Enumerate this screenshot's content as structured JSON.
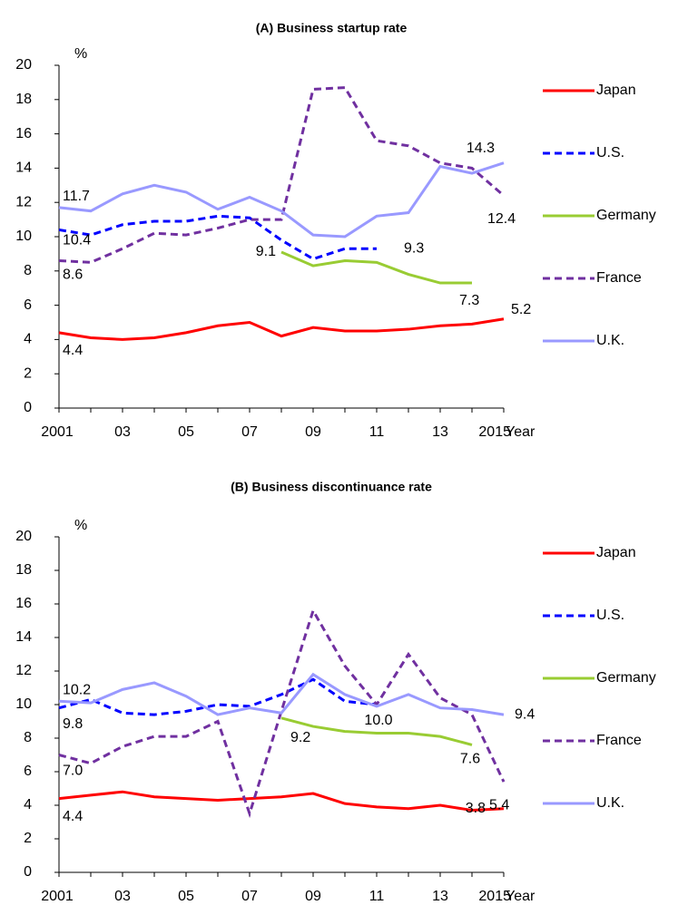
{
  "chart_data": [
    {
      "type": "line",
      "title": "(A) Business startup rate",
      "y_label": "%",
      "x_label": "Year",
      "categories": [
        "2001",
        null,
        "03",
        null,
        "05",
        null,
        "07",
        null,
        "09",
        null,
        "11",
        null,
        "13",
        null,
        "2015"
      ],
      "ylim": [
        0,
        20
      ],
      "yticks": [
        0,
        2,
        4,
        6,
        8,
        10,
        12,
        14,
        16,
        18,
        20
      ],
      "grid": false,
      "legend": "right",
      "series": [
        {
          "name": "Japan",
          "color": "#ff0000",
          "line_style": "solid",
          "values": [
            4.4,
            4.1,
            4.0,
            4.1,
            4.4,
            4.8,
            5.0,
            4.2,
            4.7,
            4.5,
            4.5,
            4.6,
            4.8,
            4.9,
            5.2
          ],
          "value_labels": [
            "4.4",
            null,
            null,
            null,
            null,
            null,
            null,
            null,
            null,
            null,
            null,
            null,
            null,
            null,
            "5.2"
          ]
        },
        {
          "name": "U.S.",
          "color": "#0000ff",
          "line_style": "dashed",
          "values": [
            10.4,
            10.1,
            10.7,
            10.9,
            10.9,
            11.2,
            11.1,
            9.8,
            8.7,
            9.3,
            9.3,
            null,
            null,
            null,
            null
          ],
          "value_labels": [
            "10.4",
            null,
            null,
            null,
            null,
            null,
            null,
            null,
            null,
            null,
            "9.3",
            null,
            null,
            null,
            null
          ]
        },
        {
          "name": "Germany",
          "color": "#99cc33",
          "line_style": "solid",
          "values": [
            null,
            null,
            null,
            null,
            null,
            null,
            null,
            9.1,
            8.3,
            8.6,
            8.5,
            7.8,
            7.3,
            7.3,
            null
          ],
          "value_labels": [
            null,
            null,
            null,
            null,
            null,
            null,
            null,
            "9.1",
            null,
            null,
            null,
            null,
            null,
            "7.3",
            null
          ]
        },
        {
          "name": "France",
          "color": "#7030a0",
          "line_style": "dashed",
          "values": [
            8.6,
            8.5,
            9.3,
            10.2,
            10.1,
            10.5,
            11.0,
            11.0,
            18.6,
            18.7,
            15.6,
            15.3,
            14.3,
            14.0,
            12.4
          ],
          "value_labels": [
            "8.6",
            null,
            null,
            null,
            null,
            null,
            null,
            null,
            null,
            null,
            null,
            null,
            null,
            null,
            "12.4"
          ]
        },
        {
          "name": "U.K.",
          "color": "#9999ff",
          "line_style": "solid",
          "values": [
            11.7,
            11.5,
            12.5,
            13.0,
            12.6,
            11.6,
            12.3,
            11.5,
            10.1,
            10.0,
            11.2,
            11.4,
            14.1,
            13.7,
            14.3
          ],
          "value_labels": [
            "11.7",
            null,
            null,
            null,
            null,
            null,
            null,
            null,
            null,
            null,
            null,
            null,
            null,
            null,
            "14.3"
          ]
        }
      ]
    },
    {
      "type": "line",
      "title": "(B) Business discontinuance rate",
      "y_label": "%",
      "x_label": "Year",
      "categories": [
        "2001",
        null,
        "03",
        null,
        "05",
        null,
        "07",
        null,
        "09",
        null,
        "11",
        null,
        "13",
        null,
        "2015"
      ],
      "ylim": [
        0,
        20
      ],
      "yticks": [
        0,
        2,
        4,
        6,
        8,
        10,
        12,
        14,
        16,
        18,
        20
      ],
      "grid": false,
      "legend": "right",
      "series": [
        {
          "name": "Japan",
          "color": "#ff0000",
          "line_style": "solid",
          "values": [
            4.4,
            4.6,
            4.8,
            4.5,
            4.4,
            4.3,
            4.4,
            4.5,
            4.7,
            4.1,
            3.9,
            3.8,
            4.0,
            3.7,
            3.8
          ],
          "value_labels": [
            "4.4",
            null,
            null,
            null,
            null,
            null,
            null,
            null,
            null,
            null,
            null,
            null,
            null,
            null,
            "3.8"
          ]
        },
        {
          "name": "U.S.",
          "color": "#0000ff",
          "line_style": "dashed",
          "values": [
            9.8,
            10.3,
            9.5,
            9.4,
            9.6,
            10.0,
            9.9,
            10.6,
            11.5,
            10.2,
            10.0,
            null,
            null,
            null,
            null
          ],
          "value_labels": [
            "9.8",
            null,
            null,
            null,
            null,
            null,
            null,
            null,
            null,
            null,
            "10.0",
            null,
            null,
            null,
            null
          ]
        },
        {
          "name": "Germany",
          "color": "#99cc33",
          "line_style": "solid",
          "values": [
            null,
            null,
            null,
            null,
            null,
            null,
            null,
            9.2,
            8.7,
            8.4,
            8.3,
            8.3,
            8.1,
            7.6,
            null
          ],
          "value_labels": [
            null,
            null,
            null,
            null,
            null,
            null,
            null,
            "9.2",
            null,
            null,
            null,
            null,
            null,
            "7.6",
            null
          ]
        },
        {
          "name": "France",
          "color": "#7030a0",
          "line_style": "dashed",
          "values": [
            7.0,
            6.5,
            7.5,
            8.1,
            8.1,
            9.0,
            3.5,
            9.6,
            15.6,
            12.3,
            10.0,
            13.0,
            10.4,
            9.4,
            5.4
          ],
          "value_labels": [
            "7.0",
            null,
            null,
            null,
            null,
            null,
            null,
            null,
            null,
            null,
            null,
            null,
            null,
            null,
            "5.4"
          ]
        },
        {
          "name": "U.K.",
          "color": "#9999ff",
          "line_style": "solid",
          "values": [
            10.2,
            10.1,
            10.9,
            11.3,
            10.5,
            9.4,
            9.8,
            9.5,
            11.8,
            10.6,
            9.9,
            10.6,
            9.8,
            9.7,
            9.4
          ],
          "value_labels": [
            "10.2",
            null,
            null,
            null,
            null,
            null,
            null,
            null,
            null,
            null,
            null,
            null,
            null,
            null,
            "9.4"
          ]
        }
      ]
    }
  ]
}
